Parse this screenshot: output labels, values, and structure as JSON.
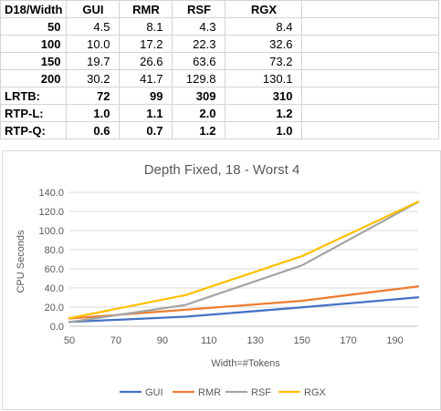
{
  "sheet": {
    "header": [
      "D18/Width",
      "GUI",
      "RMR",
      "RSF",
      "RGX"
    ],
    "data_rows": [
      {
        "label": "50",
        "values": [
          "4.5",
          "8.1",
          "4.3",
          "8.4"
        ]
      },
      {
        "label": "100",
        "values": [
          "10.0",
          "17.2",
          "22.3",
          "32.6"
        ]
      },
      {
        "label": "150",
        "values": [
          "19.7",
          "26.6",
          "63.6",
          "73.2"
        ]
      },
      {
        "label": "200",
        "values": [
          "30.2",
          "41.7",
          "129.8",
          "130.1"
        ]
      }
    ],
    "summary_rows": [
      {
        "label": "LRTB:",
        "values": [
          "72",
          "99",
          "309",
          "310"
        ]
      },
      {
        "label": "RTP-L:",
        "values": [
          "1.0",
          "1.1",
          "2.0",
          "1.2"
        ]
      },
      {
        "label": "RTP-Q:",
        "values": [
          "0.6",
          "0.7",
          "1.2",
          "1.0"
        ]
      }
    ]
  },
  "chart_data": {
    "type": "line",
    "title": "Depth Fixed, 18 - Worst 4",
    "xlabel": "Width=#Tokens",
    "ylabel": "CPU Seconds",
    "x": [
      50,
      100,
      150,
      200
    ],
    "xlim": [
      50,
      200
    ],
    "ylim": [
      0,
      140
    ],
    "xticks": [
      "50",
      "70",
      "90",
      "110",
      "130",
      "150",
      "170",
      "190"
    ],
    "yticks": [
      "0.0",
      "20.0",
      "40.0",
      "60.0",
      "80.0",
      "100.0",
      "120.0",
      "140.0"
    ],
    "grid": true,
    "legend_position": "bottom",
    "series": [
      {
        "name": "GUI",
        "color": "#4472C4",
        "values": [
          4.5,
          10.0,
          19.7,
          30.2
        ]
      },
      {
        "name": "RMR",
        "color": "#ED7D31",
        "values": [
          8.1,
          17.2,
          26.6,
          41.7
        ]
      },
      {
        "name": "RSF",
        "color": "#A5A5A5",
        "values": [
          4.3,
          22.3,
          63.6,
          129.8
        ]
      },
      {
        "name": "RGX",
        "color": "#FFC000",
        "values": [
          8.4,
          32.6,
          73.2,
          130.1
        ]
      }
    ]
  }
}
